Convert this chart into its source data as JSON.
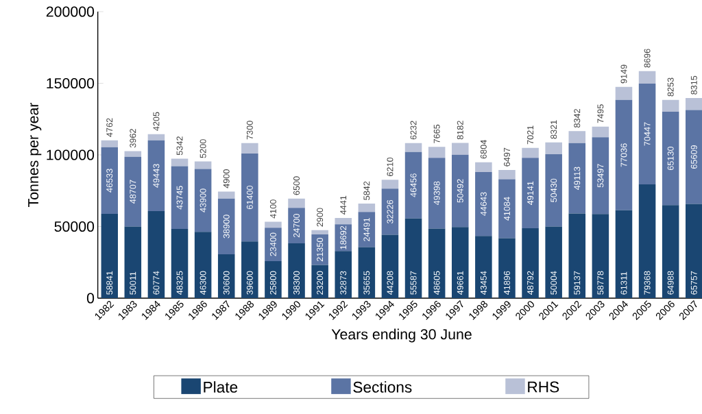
{
  "chart_data": {
    "type": "bar",
    "stacked": true,
    "xlabel": "Years ending 30 June",
    "ylabel": "Tonnes per year",
    "categories": [
      "1982",
      "1983",
      "1984",
      "1985",
      "1986",
      "1987",
      "1988",
      "1989",
      "1990",
      "1991",
      "1992",
      "1993",
      "1994",
      "1995",
      "1996",
      "1997",
      "1998",
      "1999",
      "2000",
      "2001",
      "2002",
      "2003",
      "2004",
      "2005",
      "2006",
      "2007"
    ],
    "series": [
      {
        "name": "Plate",
        "color": "#1a4672",
        "values": [
          58841,
          50011,
          60774,
          48325,
          46300,
          30600,
          39600,
          25800,
          38300,
          23200,
          32873,
          35655,
          44208,
          55587,
          48605,
          49661,
          43454,
          41896,
          48792,
          50004,
          59137,
          58778,
          61311,
          79368,
          64988,
          65757
        ]
      },
      {
        "name": "Sections",
        "color": "#5b74a4",
        "values": [
          46533,
          48707,
          49443,
          43745,
          43900,
          38900,
          61400,
          23400,
          24700,
          21350,
          18692,
          24491,
          32226,
          46456,
          49398,
          50492,
          44643,
          41084,
          49141,
          50430,
          49113,
          53497,
          77036,
          70447,
          65130,
          65609
        ]
      },
      {
        "name": "RHS",
        "color": "#b9c1d7",
        "values": [
          4762,
          3962,
          4205,
          5342,
          5200,
          4900,
          7300,
          4100,
          6500,
          2900,
          4441,
          5842,
          6210,
          6232,
          7665,
          8182,
          6804,
          6497,
          7021,
          8321,
          8342,
          7495,
          9149,
          8696,
          8253,
          8315
        ]
      }
    ],
    "ylim": [
      0,
      200000
    ],
    "yticks": [
      0,
      50000,
      100000,
      150000,
      200000
    ],
    "data_labels": true,
    "legend": "bottom",
    "grid": false
  }
}
